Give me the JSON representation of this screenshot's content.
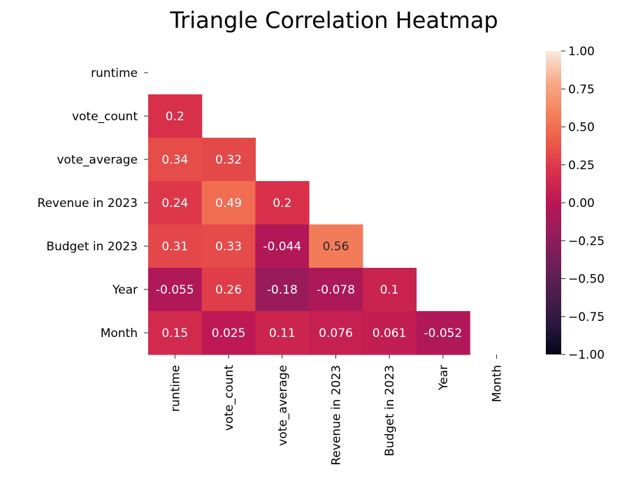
{
  "chart_data": {
    "type": "heatmap",
    "title": "Triangle Correlation Heatmap",
    "variables": [
      "runtime",
      "vote_count",
      "vote_average",
      "Revenue in 2023",
      "Budget in 2023",
      "Year",
      "Month"
    ],
    "mask": "upper triangle including diagonal",
    "cells": [
      {
        "row": "vote_count",
        "col": "runtime",
        "value": 0.2,
        "label": "0.2"
      },
      {
        "row": "vote_average",
        "col": "runtime",
        "value": 0.34,
        "label": "0.34"
      },
      {
        "row": "vote_average",
        "col": "vote_count",
        "value": 0.32,
        "label": "0.32"
      },
      {
        "row": "Revenue in 2023",
        "col": "runtime",
        "value": 0.24,
        "label": "0.24"
      },
      {
        "row": "Revenue in 2023",
        "col": "vote_count",
        "value": 0.49,
        "label": "0.49"
      },
      {
        "row": "Revenue in 2023",
        "col": "vote_average",
        "value": 0.2,
        "label": "0.2"
      },
      {
        "row": "Budget in 2023",
        "col": "runtime",
        "value": 0.31,
        "label": "0.31"
      },
      {
        "row": "Budget in 2023",
        "col": "vote_count",
        "value": 0.33,
        "label": "0.33"
      },
      {
        "row": "Budget in 2023",
        "col": "vote_average",
        "value": -0.044,
        "label": "-0.044"
      },
      {
        "row": "Budget in 2023",
        "col": "Revenue in 2023",
        "value": 0.56,
        "label": "0.56"
      },
      {
        "row": "Year",
        "col": "runtime",
        "value": -0.055,
        "label": "-0.055"
      },
      {
        "row": "Year",
        "col": "vote_count",
        "value": 0.26,
        "label": "0.26"
      },
      {
        "row": "Year",
        "col": "vote_average",
        "value": -0.18,
        "label": "-0.18"
      },
      {
        "row": "Year",
        "col": "Revenue in 2023",
        "value": -0.078,
        "label": "-0.078"
      },
      {
        "row": "Year",
        "col": "Budget in 2023",
        "value": 0.1,
        "label": "0.1"
      },
      {
        "row": "Month",
        "col": "runtime",
        "value": 0.15,
        "label": "0.15"
      },
      {
        "row": "Month",
        "col": "vote_count",
        "value": 0.025,
        "label": "0.025"
      },
      {
        "row": "Month",
        "col": "vote_average",
        "value": 0.11,
        "label": "0.11"
      },
      {
        "row": "Month",
        "col": "Revenue in 2023",
        "value": 0.076,
        "label": "0.076"
      },
      {
        "row": "Month",
        "col": "Budget in 2023",
        "value": 0.061,
        "label": "0.061"
      },
      {
        "row": "Month",
        "col": "Year",
        "value": -0.052,
        "label": "-0.052"
      }
    ],
    "colorbar": {
      "range": [
        -1,
        1
      ],
      "ticks": [
        1.0,
        0.75,
        0.5,
        0.25,
        0.0,
        -0.25,
        -0.5,
        -0.75,
        -1.0
      ],
      "tick_labels": [
        "1.00",
        "0.75",
        "0.50",
        "0.25",
        "0.00",
        "−0.25",
        "−0.50",
        "−0.75",
        "−1.00"
      ],
      "colormap": "rocket",
      "color_stops": [
        "#03051a",
        "#2b1840",
        "#4c1d4b",
        "#701f57",
        "#961c5b",
        "#ba1656",
        "#d8304a",
        "#ec5a48",
        "#f4845f",
        "#f6ab8c",
        "#faebdd"
      ]
    }
  }
}
